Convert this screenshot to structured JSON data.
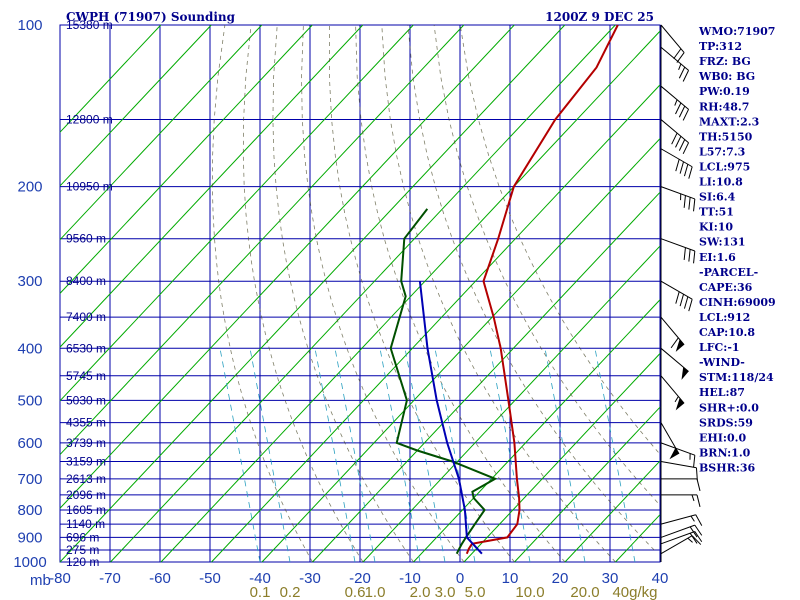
{
  "title_left": "CWPH (71907) Sounding",
  "title_right": "1200Z  9 DEC 25",
  "colors": {
    "grid": "#0000aa",
    "dry_adiabat": "#00aa00",
    "moist_adiabat": "#4a4a2a",
    "mixing_ratio": "#2aa0c0",
    "temperature": "#b40000",
    "dewpoint": "#005000",
    "parcel": "#0000b4"
  },
  "chart_data": {
    "type": "line",
    "title": "CWPH (71907) Sounding",
    "xlabel": "mb",
    "ylabel": "",
    "x_ticks": [
      {
        "label": "-80",
        "value": -80
      },
      {
        "label": "-70",
        "value": -70
      },
      {
        "label": "-60",
        "value": -60
      },
      {
        "label": "-50",
        "value": -50
      },
      {
        "label": "-40",
        "value": -40
      },
      {
        "label": "-30",
        "value": -30
      },
      {
        "label": "-20",
        "value": -20
      },
      {
        "label": "-10",
        "value": -10
      },
      {
        "label": "0",
        "value": 0
      },
      {
        "label": "10",
        "value": 10
      },
      {
        "label": "20",
        "value": 20
      },
      {
        "label": "30",
        "value": 30
      },
      {
        "label": "40",
        "value": 40
      }
    ],
    "pressure_ticks": [
      "100",
      "200",
      "300",
      "400",
      "500",
      "600",
      "700",
      "800",
      "900",
      "1000"
    ],
    "mixing_ratio_labels": [
      {
        "label": "0.1",
        "value": -40
      },
      {
        "label": "0.2",
        "value": -34
      },
      {
        "label": "0.6",
        "value": -21
      },
      {
        "label": "1.0",
        "value": -17
      },
      {
        "label": "2.0",
        "value": -8
      },
      {
        "label": "3.0",
        "value": -3
      },
      {
        "label": "5.0",
        "value": 3
      },
      {
        "label": "10.0",
        "value": 14
      },
      {
        "label": "20.0",
        "value": 25
      },
      {
        "label": "40g/kg",
        "value": 35
      }
    ],
    "height_labels": [
      {
        "label": "15380 m",
        "p": 100
      },
      {
        "label": "12800 m",
        "p": 150
      },
      {
        "label": "10950 m",
        "p": 200
      },
      {
        "label": "9560 m",
        "p": 250
      },
      {
        "label": "8400 m",
        "p": 300
      },
      {
        "label": "7400 m",
        "p": 350
      },
      {
        "label": "6530 m",
        "p": 400
      },
      {
        "label": "5745 m",
        "p": 450
      },
      {
        "label": "5030 m",
        "p": 500
      },
      {
        "label": "4355 m",
        "p": 550
      },
      {
        "label": "3739 m",
        "p": 600
      },
      {
        "label": "3159 m",
        "p": 650
      },
      {
        "label": "2613 m",
        "p": 700
      },
      {
        "label": "2096 m",
        "p": 750
      },
      {
        "label": "1605 m",
        "p": 800
      },
      {
        "label": "1140 m",
        "p": 850
      },
      {
        "label": "696 m",
        "p": 900
      },
      {
        "label": "275 m",
        "p": 950
      },
      {
        "label": "120 m",
        "p": 1000
      }
    ],
    "series": [
      {
        "name": "Temperature",
        "values": [
          {
            "p": 965,
            "t": -1.0
          },
          {
            "p": 945,
            "t": -1.5
          },
          {
            "p": 925,
            "t": -1.8
          },
          {
            "p": 900,
            "t": 4.0
          },
          {
            "p": 850,
            "t": 3.5
          },
          {
            "p": 800,
            "t": 1.3
          },
          {
            "p": 760,
            "t": -1.0
          },
          {
            "p": 700,
            "t": -5.0
          },
          {
            "p": 600,
            "t": -12.2
          },
          {
            "p": 500,
            "t": -21.3
          },
          {
            "p": 400,
            "t": -32.5
          },
          {
            "p": 350,
            "t": -39.7
          },
          {
            "p": 300,
            "t": -48.4
          },
          {
            "p": 250,
            "t": -53.4
          },
          {
            "p": 200,
            "t": -60.0
          },
          {
            "p": 150,
            "t": -64.3
          },
          {
            "p": 120,
            "t": -65.8
          },
          {
            "p": 100,
            "t": -69.5
          }
        ]
      },
      {
        "name": "Dewpoint",
        "values": [
          {
            "p": 965,
            "t": -3.0
          },
          {
            "p": 945,
            "t": -3.4
          },
          {
            "p": 925,
            "t": -3.8
          },
          {
            "p": 900,
            "t": -4.2
          },
          {
            "p": 850,
            "t": -4.9
          },
          {
            "p": 800,
            "t": -5.6
          },
          {
            "p": 760,
            "t": -10.0
          },
          {
            "p": 740,
            "t": -11.4
          },
          {
            "p": 700,
            "t": -9.3
          },
          {
            "p": 650,
            "t": -21.0
          },
          {
            "p": 620,
            "t": -30.0
          },
          {
            "p": 600,
            "t": -35.5
          },
          {
            "p": 500,
            "t": -41.4
          },
          {
            "p": 400,
            "t": -54.3
          },
          {
            "p": 320,
            "t": -61.0
          },
          {
            "p": 300,
            "t": -64.7
          },
          {
            "p": 250,
            "t": -72.0
          },
          {
            "p": 220,
            "t": -73.0
          }
        ]
      },
      {
        "name": "Parcel",
        "values": [
          {
            "p": 965,
            "t": 2.0
          },
          {
            "p": 900,
            "t": -4.0
          },
          {
            "p": 800,
            "t": -9.5
          },
          {
            "p": 700,
            "t": -16.5
          },
          {
            "p": 600,
            "t": -25.5
          },
          {
            "p": 500,
            "t": -35.5
          },
          {
            "p": 400,
            "t": -47.0
          },
          {
            "p": 300,
            "t": -61.0
          }
        ]
      }
    ],
    "wind_barbs": [
      {
        "p": 965,
        "dir": 60,
        "spd": 15
      },
      {
        "p": 925,
        "dir": 70,
        "spd": 20
      },
      {
        "p": 900,
        "dir": 70,
        "spd": 20
      },
      {
        "p": 850,
        "dir": 75,
        "spd": 15
      },
      {
        "p": 750,
        "dir": 90,
        "spd": 15
      },
      {
        "p": 700,
        "dir": 90,
        "spd": 10
      },
      {
        "p": 650,
        "dir": 100,
        "spd": 10
      },
      {
        "p": 600,
        "dir": 110,
        "spd": 15
      },
      {
        "p": 550,
        "dir": 150,
        "spd": 50
      },
      {
        "p": 450,
        "dir": 140,
        "spd": 55
      },
      {
        "p": 400,
        "dir": 130,
        "spd": 50
      },
      {
        "p": 350,
        "dir": 140,
        "spd": 60
      },
      {
        "p": 300,
        "dir": 120,
        "spd": 40
      },
      {
        "p": 250,
        "dir": 110,
        "spd": 30
      },
      {
        "p": 200,
        "dir": 110,
        "spd": 35
      },
      {
        "p": 170,
        "dir": 120,
        "spd": 40
      },
      {
        "p": 150,
        "dir": 130,
        "spd": 40
      },
      {
        "p": 130,
        "dir": 130,
        "spd": 35
      },
      {
        "p": 110,
        "dir": 130,
        "spd": 25
      },
      {
        "p": 100,
        "dir": 140,
        "spd": 20
      }
    ]
  },
  "indices": [
    "WMO:71907",
    "TP:312",
    "FRZ: BG",
    "WB0: BG",
    "PW:0.19",
    "RH:48.7",
    "MAXT:2.3",
    "TH:5150",
    "L57:7.3",
    "LCL:975",
    "LI:10.8",
    "SI:6.4",
    "TT:51",
    "KI:10",
    "SW:131",
    "EI:1.6",
    "-PARCEL-",
    "CAPE:36",
    "CINH:69009",
    "LCL:912",
    "CAP:10.8",
    "LFC:-1",
    "-WIND-",
    "STM:118/24",
    "HEL:87",
    "SHR+:0.0",
    "SRDS:59",
    "EHI:0.0",
    "BRN:1.0",
    "BSHR:36"
  ]
}
